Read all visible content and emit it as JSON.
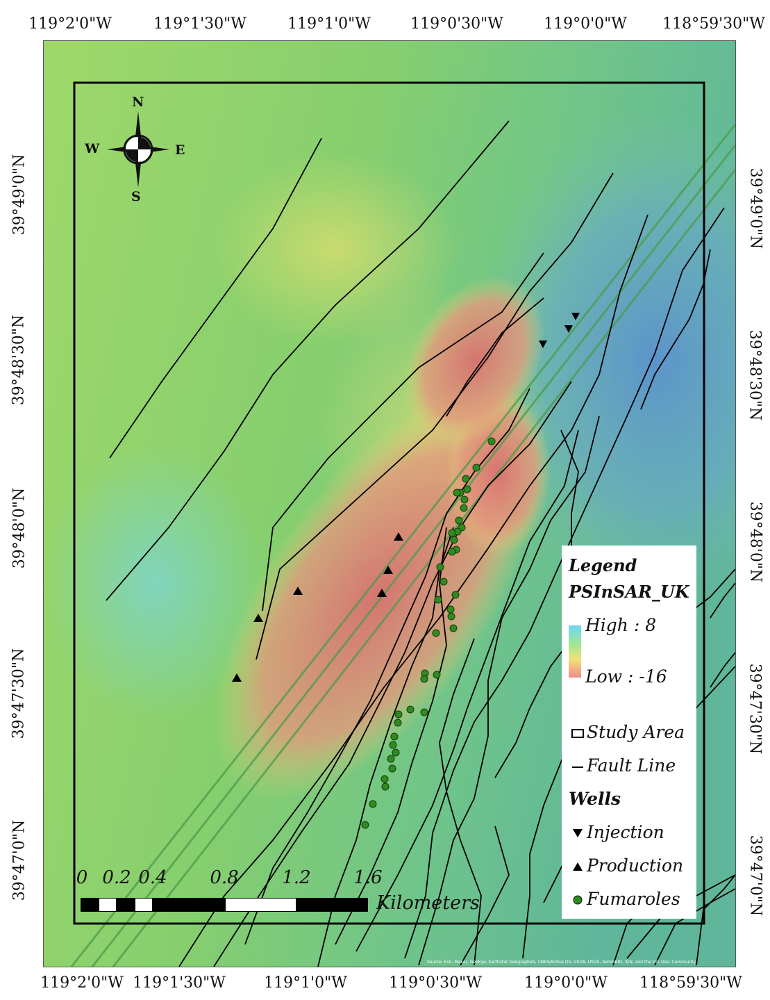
{
  "graticule": {
    "top_longitudes": [
      "119°2'0\"W",
      "119°1'30\"W",
      "119°1'0\"W",
      "119°0'30\"W",
      "119°0'0\"W",
      "118°59'30\"W"
    ],
    "bottom_longitudes": [
      "119°2'0\"W",
      "119°1'30\"W",
      "119°1'0\"W",
      "119°0'30\"W",
      "119°0'0\"W",
      "118°59'30\"W"
    ],
    "left_latitudes": [
      "39°49'0\"N",
      "39°48'30\"N",
      "39°48'0\"N",
      "39°47'30\"N",
      "39°47'0\"N"
    ],
    "right_latitudes": [
      "39°49'0\"N",
      "39°48'30\"N",
      "39°48'0\"N",
      "39°47'30\"N",
      "39°47'0\"N"
    ]
  },
  "compass": {
    "n": "N",
    "s": "S",
    "e": "E",
    "w": "W"
  },
  "legend": {
    "title": "Legend",
    "layer": "PSInSAR_UK",
    "high_label": "High : 8",
    "low_label": "Low : -16",
    "study_area": "Study Area",
    "fault_line": "Fault Line",
    "wells_heading": "Wells",
    "injection": "Injection",
    "production": "Production",
    "fumaroles": "Fumaroles",
    "colors": {
      "high": "#6fd6f4",
      "mid": "#a8e88a",
      "low": "#f08a8a"
    }
  },
  "scale_bar": {
    "labels": [
      "0",
      "0.2",
      "0.4",
      "0.8",
      "1.2",
      "1.6"
    ],
    "unit": "Kilometers"
  },
  "attribution": "Source: Esri, Maxar, GeoEye, Earthstar Geographics, CNES/Airbus DS, USDA, USGS, AeroGRID, IGN, and the GIS User Community",
  "map_colors": {
    "water_blue": "#5b8fd0",
    "subsidence_red": "#e08080",
    "base_green": "#7cc86a",
    "fault": "#000000",
    "fumarole": "#2e8b1e"
  }
}
